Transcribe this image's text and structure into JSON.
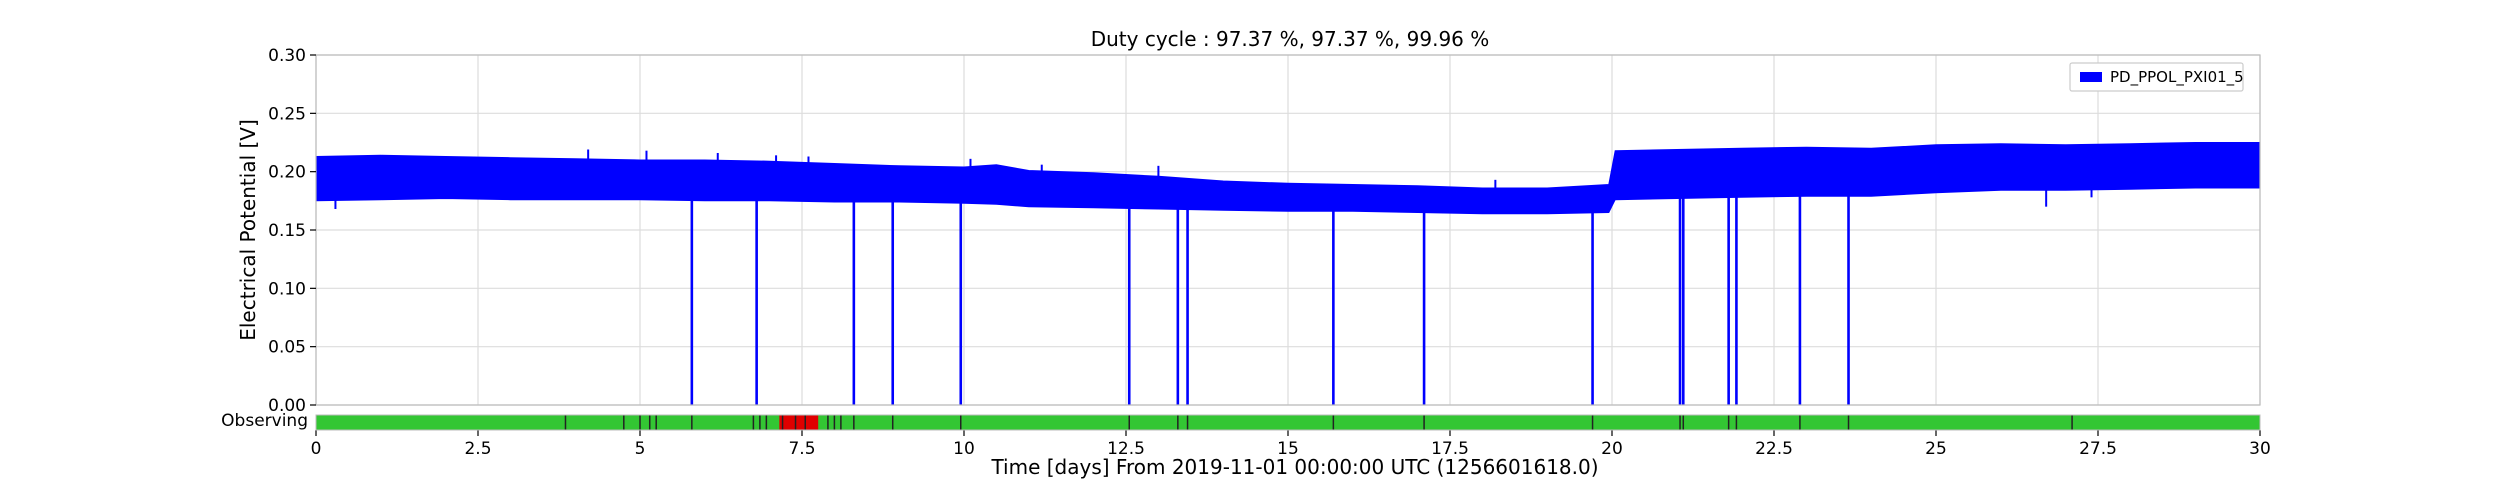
{
  "chart_data": {
    "type": "line",
    "title": "Duty cycle : 97.37 %, 97.37 %, 99.96 %",
    "xlabel": "Time [days] From 2019-11-01 00:00:00 UTC (1256601618.0)",
    "ylabel": "Electrical Potential [V]",
    "xlim": [
      0,
      30
    ],
    "ylim": [
      0,
      0.3
    ],
    "xticks": [
      0,
      2.5,
      5,
      7.5,
      10,
      12.5,
      15,
      17.5,
      20,
      22.5,
      25,
      27.5,
      30
    ],
    "xtick_labels": [
      "0",
      "2.5",
      "5",
      "7.5",
      "10",
      "12.5",
      "15",
      "17.5",
      "20",
      "22.5",
      "25",
      "27.5",
      "30"
    ],
    "yticks": [
      0,
      0.05,
      0.1,
      0.15,
      0.2,
      0.25,
      0.3
    ],
    "ytick_labels": [
      "0.00",
      "0.05",
      "0.10",
      "0.15",
      "0.20",
      "0.25",
      "0.30"
    ],
    "grid": true,
    "legend_position": "top-right",
    "series": [
      {
        "name": "PD_PPOL_PXI01_5",
        "color": "#0000ff",
        "band": {
          "x": [
            0,
            1,
            2,
            3,
            4,
            5,
            6,
            7,
            8,
            9,
            10,
            10.5,
            11,
            12,
            13,
            14,
            15,
            16,
            17,
            18,
            19,
            19.95,
            20.05,
            21,
            22,
            23,
            24,
            25,
            26,
            27,
            28,
            29,
            30
          ],
          "upper": [
            0.213,
            0.214,
            0.213,
            0.212,
            0.211,
            0.21,
            0.21,
            0.209,
            0.207,
            0.205,
            0.204,
            0.206,
            0.201,
            0.199,
            0.196,
            0.192,
            0.19,
            0.189,
            0.188,
            0.186,
            0.186,
            0.189,
            0.218,
            0.219,
            0.22,
            0.221,
            0.22,
            0.223,
            0.224,
            0.223,
            0.224,
            0.225,
            0.225
          ],
          "lower": [
            0.175,
            0.176,
            0.177,
            0.176,
            0.176,
            0.176,
            0.175,
            0.175,
            0.174,
            0.174,
            0.173,
            0.172,
            0.17,
            0.169,
            0.168,
            0.167,
            0.166,
            0.166,
            0.165,
            0.164,
            0.164,
            0.165,
            0.176,
            0.177,
            0.178,
            0.179,
            0.179,
            0.182,
            0.184,
            0.184,
            0.185,
            0.186,
            0.186
          ]
        },
        "dropouts": [
          {
            "x": 5.8,
            "to": 0.0
          },
          {
            "x": 6.8,
            "to": 0.0
          },
          {
            "x": 8.3,
            "to": 0.0
          },
          {
            "x": 8.9,
            "to": 0.0
          },
          {
            "x": 9.95,
            "to": 0.0
          },
          {
            "x": 12.55,
            "to": 0.0
          },
          {
            "x": 13.3,
            "to": 0.0
          },
          {
            "x": 13.45,
            "to": 0.0
          },
          {
            "x": 15.7,
            "to": 0.0
          },
          {
            "x": 17.1,
            "to": 0.0
          },
          {
            "x": 19.7,
            "to": 0.0
          },
          {
            "x": 21.05,
            "to": 0.0
          },
          {
            "x": 21.1,
            "to": 0.0
          },
          {
            "x": 21.8,
            "to": 0.0
          },
          {
            "x": 21.92,
            "to": 0.0
          },
          {
            "x": 22.9,
            "to": 0.0
          },
          {
            "x": 23.65,
            "to": 0.0
          }
        ],
        "spikes": [
          {
            "x": 0.3,
            "to": 0.168
          },
          {
            "x": 4.2,
            "to": 0.219
          },
          {
            "x": 5.1,
            "to": 0.218
          },
          {
            "x": 6.2,
            "to": 0.216
          },
          {
            "x": 7.1,
            "to": 0.214
          },
          {
            "x": 7.6,
            "to": 0.213
          },
          {
            "x": 10.1,
            "to": 0.211
          },
          {
            "x": 11.2,
            "to": 0.206
          },
          {
            "x": 13.0,
            "to": 0.205
          },
          {
            "x": 18.2,
            "to": 0.193
          },
          {
            "x": 26.7,
            "to": 0.17
          },
          {
            "x": 27.4,
            "to": 0.178
          }
        ]
      }
    ],
    "state_bar": {
      "label": "Observing",
      "color_on": "#33c633",
      "color_off": "#e00000",
      "range": [
        0,
        30
      ],
      "gaps": [
        3.85,
        4.75,
        5.0,
        5.15,
        5.25,
        5.8,
        6.75,
        6.85,
        6.95,
        7.2,
        7.4,
        7.55,
        7.9,
        8.0,
        8.1,
        8.3,
        8.9,
        9.95,
        12.55,
        13.3,
        13.45,
        15.7,
        17.1,
        19.7,
        21.05,
        21.1,
        21.8,
        21.92,
        22.9,
        23.65,
        27.1
      ],
      "off_intervals": [
        [
          7.15,
          7.75
        ]
      ]
    }
  }
}
